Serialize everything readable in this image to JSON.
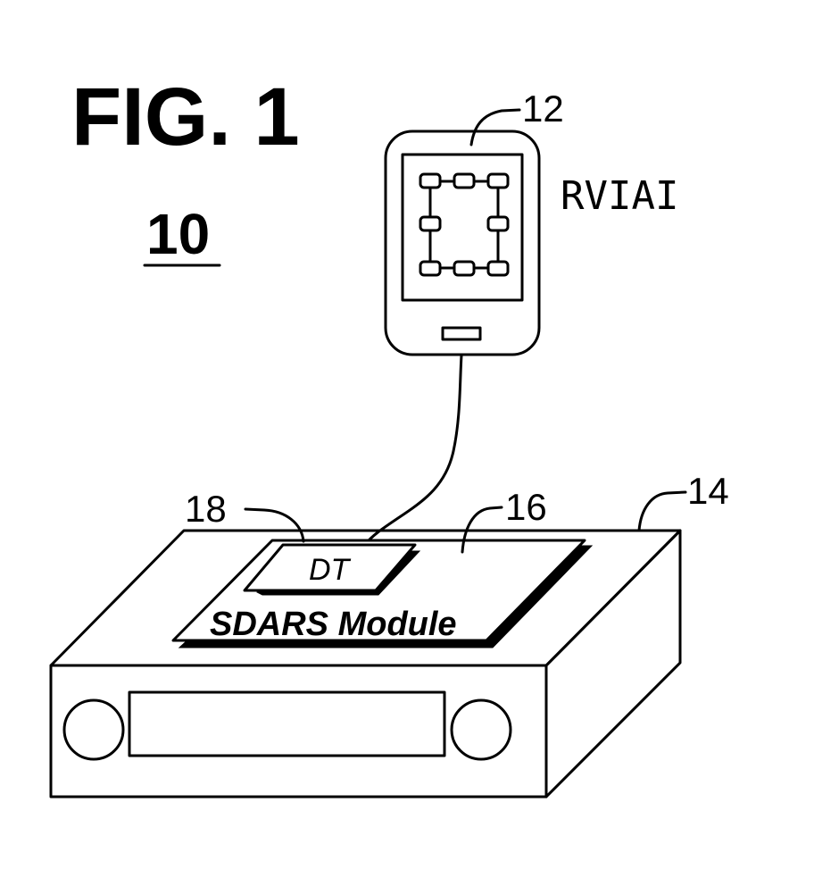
{
  "figure": {
    "title": "FIG. 1",
    "system_number": "10"
  },
  "device": {
    "ref": "12",
    "label": "RVIAI"
  },
  "receiver": {
    "ref": "14"
  },
  "module": {
    "ref": "16",
    "label": "SDARS Module"
  },
  "tuner": {
    "ref": "18",
    "label": "DT"
  }
}
